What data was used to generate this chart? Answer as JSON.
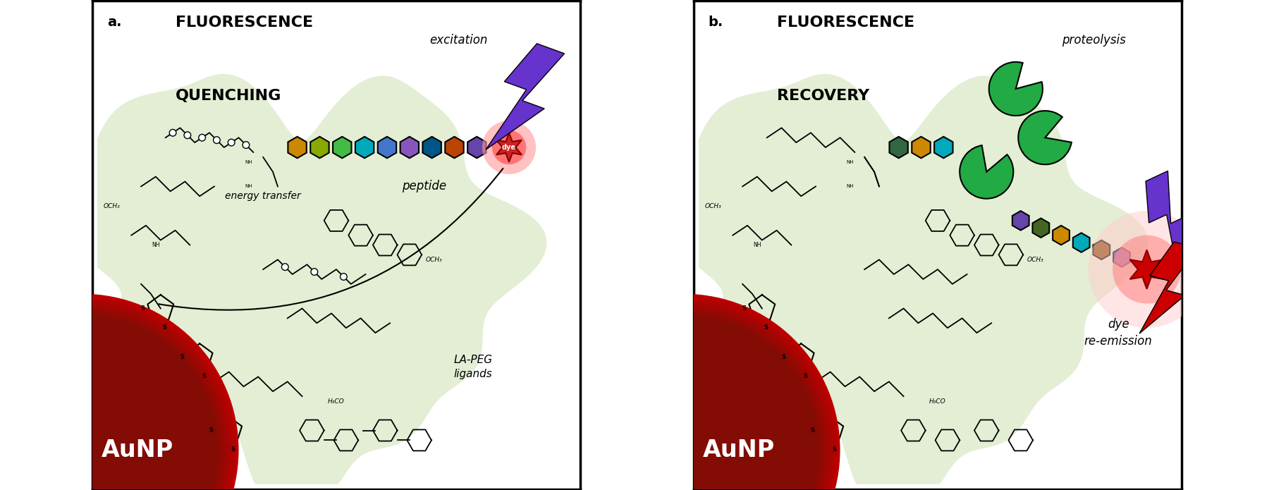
{
  "panel_a_title_line1": "Fluorescence",
  "panel_a_title_line2": "Quenching",
  "panel_b_title_line1": "Fluorescence",
  "panel_b_title_line2": "Recovery",
  "panel_a_label": "a.",
  "panel_b_label": "b.",
  "panel_a_excitation": "excitation",
  "panel_b_proteolysis": "proteolysis",
  "panel_a_energy": "energy transfer",
  "panel_a_dye": "dye",
  "panel_a_peptide": "peptide",
  "panel_b_dye_re": "dye\nre-emission",
  "aunp_text": "AuNP",
  "la_peg": "LA-PEG\nligands",
  "bg_color": "#ffffff",
  "panel_bg": "#e8f0e0",
  "aunp_color_outer": "#cc0000",
  "aunp_color_inner": "#880000",
  "border_color": "#000000",
  "peptide_colors": [
    "#cc8800",
    "#88aa00",
    "#44aa44",
    "#00aacc",
    "#4466cc",
    "#8844aa",
    "#006688",
    "#cc4400",
    "#6644aa"
  ],
  "peptide_colors_b_left": [
    "#336644",
    "#cc8800",
    "#00aacc"
  ],
  "peptide_colors_b_right": [
    "#6644aa",
    "#446622",
    "#cc8800",
    "#00aacc",
    "#884400",
    "#6644aa"
  ],
  "enzyme_color": "#22aa44",
  "lightning_a_color": "#6633cc",
  "lightning_b_purple_color": "#6633cc",
  "lightning_b_red_color": "#cc0000",
  "dye_star_color": "#cc0000",
  "dye_glow_color": "#ff6666",
  "figsize": [
    18.07,
    6.95
  ],
  "dpi": 100
}
